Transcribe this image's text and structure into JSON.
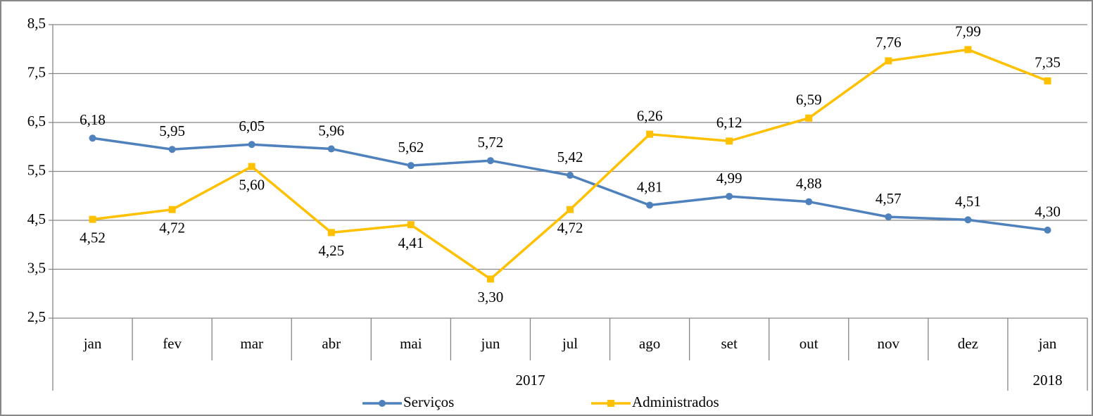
{
  "chart_data": {
    "type": "line",
    "categories": [
      "jan",
      "fev",
      "mar",
      "abr",
      "mai",
      "jun",
      "jul",
      "ago",
      "set",
      "out",
      "nov",
      "dez",
      "jan"
    ],
    "groups": [
      {
        "label": "2017",
        "count": 12
      },
      {
        "label": "2018",
        "count": 1
      }
    ],
    "series": [
      {
        "name": "Serviços",
        "color": "#4f81bd",
        "marker": "circle",
        "values": [
          6.18,
          5.95,
          6.05,
          5.96,
          5.62,
          5.72,
          5.42,
          4.81,
          4.99,
          4.88,
          4.57,
          4.51,
          4.3
        ],
        "value_labels": [
          "6,18",
          "5,95",
          "6,05",
          "5,96",
          "5,62",
          "5,72",
          "5,42",
          "4,81",
          "4,99",
          "4,88",
          "4,57",
          "4,51",
          "4,30"
        ]
      },
      {
        "name": "Administrados",
        "color": "#ffc000",
        "marker": "square",
        "values": [
          4.52,
          4.72,
          5.6,
          4.25,
          4.41,
          3.3,
          4.72,
          6.26,
          6.12,
          6.59,
          7.76,
          7.99,
          7.35
        ],
        "value_labels": [
          "4,52",
          "4,72",
          "5,60",
          "4,25",
          "4,41",
          "3,30",
          "4,72",
          "6,26",
          "6,12",
          "6,59",
          "7,76",
          "7,99",
          "7,35"
        ]
      }
    ],
    "ylim": [
      2.5,
      8.5
    ],
    "yticks": [
      {
        "value": 2.5,
        "label": "2,5"
      },
      {
        "value": 3.5,
        "label": "3,5"
      },
      {
        "value": 4.5,
        "label": "4,5"
      },
      {
        "value": 5.5,
        "label": "5,5"
      },
      {
        "value": 6.5,
        "label": "6,5"
      },
      {
        "value": 7.5,
        "label": "7,5"
      },
      {
        "value": 8.5,
        "label": "8,5"
      }
    ],
    "grid": true,
    "legend": "bottom"
  }
}
